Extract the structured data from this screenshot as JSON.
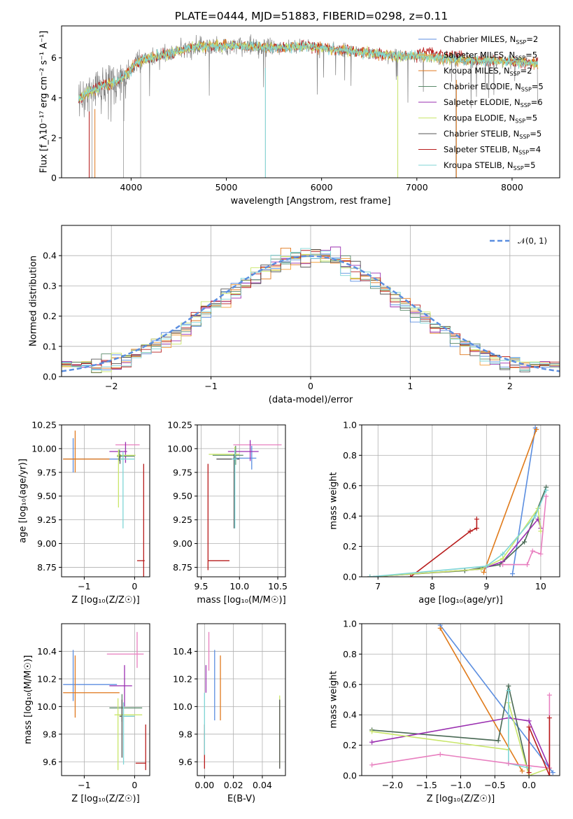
{
  "figure_title": "PLATE=0444, MJD=51883, FIBERID=0298, z=0.11",
  "colors": {
    "Chabrier MILES": "#5b8ee0",
    "Salpeter MILES": "#f2a03c",
    "Kroupa MILES": "#e0791f",
    "Chabrier ELODIE": "#5a8a6a",
    "Salpeter ELODIE": "#9a2fb0",
    "Kroupa ELODIE": "#c9e66a",
    "Chabrier STELIB": "#555555",
    "Salpeter STELIB": "#b81c1c",
    "Kroupa STELIB": "#7fd6d6",
    "Kroupa MILES weight": "#e07a1a",
    "Chabrier STELIB weight": "#4a6a55",
    "Salpeter ELODIE weight": "#9a2fb0",
    "Kroupa ELODIE weight": "#c9e66a",
    "pink": "#e87fbf",
    "data": "#808080"
  },
  "chart_data": [
    {
      "id": "spectrum",
      "type": "line",
      "title": "PLATE=0444, MJD=51883, FIBERID=0298, z=0.11",
      "xlabel": "wavelength [Angstrom, rest frame]",
      "ylabel": "Flux [f_λ10⁻¹⁷ erg cm⁻² s⁻¹ A⁻¹]",
      "xlim": [
        3270,
        8500
      ],
      "ylim": [
        0,
        7.6
      ],
      "xticks": [
        4000,
        5000,
        6000,
        7000,
        8000
      ],
      "yticks": [
        0,
        2,
        4,
        6
      ],
      "grid": false,
      "legend": "right",
      "legend_entries": [
        {
          "label": "Chabrier MILES, N",
          "sub": "SSP",
          "suffix": "=2",
          "color": "#5b8ee0"
        },
        {
          "label": "Salpeter MILES, N",
          "sub": "SSP",
          "suffix": "=5",
          "color": "#f2a03c"
        },
        {
          "label": "Kroupa MILES, N",
          "sub": "SSP",
          "suffix": "=2",
          "color": "#e0791f"
        },
        {
          "label": "Chabrier ELODIE, N",
          "sub": "SSP",
          "suffix": "=5",
          "color": "#5a8a6a"
        },
        {
          "label": "Salpeter ELODIE, N",
          "sub": "SSP",
          "suffix": "=6",
          "color": "#9a2fb0"
        },
        {
          "label": "Kroupa ELODIE, N",
          "sub": "SSP",
          "suffix": "=5",
          "color": "#c9e66a"
        },
        {
          "label": "Chabrier STELIB, N",
          "sub": "SSP",
          "suffix": "=5",
          "color": "#555555"
        },
        {
          "label": "Salpeter STELIB, N",
          "sub": "SSP",
          "suffix": "=4",
          "color": "#b81c1c"
        },
        {
          "label": "Kroupa STELIB, N",
          "sub": "SSP",
          "suffix": "=5",
          "color": "#7fd6d6"
        }
      ],
      "continuum": [
        [
          3450,
          3.9
        ],
        [
          3550,
          4.3
        ],
        [
          3650,
          4.5
        ],
        [
          3750,
          4.7
        ],
        [
          3850,
          4.8
        ],
        [
          3950,
          5.2
        ],
        [
          4050,
          5.7
        ],
        [
          4200,
          6.0
        ],
        [
          4400,
          6.2
        ],
        [
          4600,
          6.5
        ],
        [
          4800,
          6.6
        ],
        [
          5000,
          6.6
        ],
        [
          5200,
          6.6
        ],
        [
          5400,
          6.5
        ],
        [
          5600,
          6.5
        ],
        [
          5800,
          6.6
        ],
        [
          6000,
          6.5
        ],
        [
          6200,
          6.4
        ],
        [
          6400,
          6.3
        ],
        [
          6600,
          6.2
        ],
        [
          6800,
          6.1
        ],
        [
          7000,
          6.1
        ],
        [
          7200,
          6.0
        ],
        [
          7400,
          5.9
        ],
        [
          7600,
          5.9
        ],
        [
          7800,
          5.85
        ],
        [
          8000,
          5.8
        ],
        [
          8270,
          5.75
        ]
      ],
      "data_spikes_low": [
        3560,
        3590,
        3920,
        4100,
        5410,
        6800,
        7410
      ]
    },
    {
      "id": "residuals",
      "type": "line",
      "xlabel": "(data-model)/error",
      "ylabel": "Normed distribution",
      "xlim": [
        -2.5,
        2.5
      ],
      "ylim": [
        0,
        0.5
      ],
      "xticks": [
        -2,
        -1,
        0,
        1,
        2
      ],
      "yticks": [
        0.0,
        0.1,
        0.2,
        0.3,
        0.4
      ],
      "grid": true,
      "legend": "top-right",
      "legend_entries": [
        {
          "label": "𝒩(0, 1)",
          "color": "#5b8ee0",
          "style": "dashed"
        }
      ],
      "series": [
        {
          "name": "𝒩(0, 1)",
          "mu": 0,
          "sigma": 1
        }
      ]
    },
    {
      "id": "age-vs-Z",
      "type": "scatter",
      "xlabel": "Z [log₁₀(Z/Z☉)]",
      "ylabel": "age  [log₁₀(age/yr)]",
      "xlim": [
        -1.45,
        0.3
      ],
      "ylim": [
        8.65,
        10.25
      ],
      "xticks": [
        -1,
        0
      ],
      "yticks": [
        8.75,
        9.0,
        9.25,
        9.5,
        9.75,
        10.0,
        10.25
      ],
      "grid": true,
      "series": [
        {
          "color": "#5b8ee0",
          "x": -1.22,
          "y": 9.89,
          "xerr": [
            0.0,
            0.0
          ],
          "yerr": [
            0.14,
            0.22
          ],
          "hx": [
            -1.42,
            -0.2
          ]
        },
        {
          "color": "#e0791f",
          "x": -1.18,
          "y": 9.89,
          "xerr": [
            0.0,
            0.0
          ],
          "yerr": [
            0.14,
            0.3
          ],
          "hx": [
            -1.42,
            -0.5
          ]
        },
        {
          "color": "#e87fbf",
          "x": 0.08,
          "y": 10.04,
          "yerr": [
            0.0,
            0.0
          ],
          "hx": [
            -0.38,
            0.1
          ]
        },
        {
          "color": "#9a2fb0",
          "x": -0.18,
          "y": 9.97,
          "yerr": [
            0.12,
            0.1
          ],
          "hx": [
            -0.5,
            -0.15
          ]
        },
        {
          "color": "#5a8a6a",
          "x": -0.3,
          "y": 9.92,
          "yerr": [
            0.05,
            0.07
          ],
          "hx": [
            -0.35,
            0.0
          ]
        },
        {
          "color": "#c9e66a",
          "x": -0.32,
          "y": 9.93,
          "yerr": [
            0.55,
            0.06
          ],
          "hx": [
            -0.35,
            0.02
          ]
        },
        {
          "color": "#555555",
          "x": -0.29,
          "y": 9.89,
          "yerr": [
            0.05,
            0.05
          ],
          "hx": [
            -0.32,
            -0.2
          ]
        },
        {
          "color": "#7fd6d6",
          "x": -0.23,
          "y": 9.89,
          "yerr": [
            0.73,
            0.08
          ],
          "hx": [
            -0.3,
            0.0
          ]
        },
        {
          "color": "#b81c1c",
          "x": 0.18,
          "y": 8.82,
          "yerr": [
            0.2,
            1.02
          ],
          "hx": [
            0.05,
            0.2
          ]
        }
      ]
    },
    {
      "id": "age-vs-mass",
      "type": "scatter",
      "xlabel": "mass [log₁₀(M/M☉)]",
      "ylabel": "",
      "xlim": [
        9.45,
        10.6
      ],
      "ylim": [
        8.65,
        10.25
      ],
      "xticks": [
        9.5,
        10.0,
        10.5
      ],
      "yticks": [
        8.75,
        9.0,
        9.25,
        9.5,
        9.75,
        10.0,
        10.25
      ],
      "grid": true,
      "series": [
        {
          "color": "#e87fbf",
          "x": 10.38,
          "y": 10.04,
          "hx": [
            9.92,
            10.55
          ]
        },
        {
          "color": "#5b8ee0",
          "x": 10.16,
          "y": 9.9,
          "yerr": [
            0.12,
            0.13
          ],
          "hx": [
            9.92,
            10.22
          ]
        },
        {
          "color": "#9a2fb0",
          "x": 10.14,
          "y": 9.97,
          "yerr": [
            0.1,
            0.12
          ],
          "hx": [
            9.85,
            10.25
          ]
        },
        {
          "color": "#5a8a6a",
          "x": 9.95,
          "y": 9.93,
          "yerr": [
            0.1,
            0.1
          ],
          "hx": [
            9.65,
            10.05
          ]
        },
        {
          "color": "#c9e66a",
          "x": 9.94,
          "y": 9.94,
          "yerr": [
            0.12,
            0.08
          ],
          "hx": [
            9.6,
            10.0
          ]
        },
        {
          "color": "#555555",
          "x": 9.93,
          "y": 9.89,
          "yerr": [
            0.73,
            0.05
          ],
          "hx": [
            9.7,
            10.0
          ]
        },
        {
          "color": "#7fd6d6",
          "x": 9.94,
          "y": 9.89,
          "yerr": [
            0.73,
            0.1
          ],
          "hx": [
            9.9,
            9.97
          ]
        },
        {
          "color": "#b81c1c",
          "x": 9.59,
          "y": 8.82,
          "yerr": [
            0.1,
            1.02
          ],
          "hx": [
            9.59,
            9.87
          ]
        }
      ]
    },
    {
      "id": "weight-vs-age",
      "type": "line",
      "xlabel": "age  [log₁₀(age/yr)]",
      "ylabel": "mass weight",
      "xlim": [
        6.7,
        10.35
      ],
      "ylim": [
        0,
        1.0
      ],
      "xticks": [
        7,
        8,
        9,
        10
      ],
      "yticks": [
        0.0,
        0.2,
        0.4,
        0.6,
        0.8,
        1.0
      ],
      "grid": true,
      "series": [
        {
          "color": "#5b8ee0",
          "x": [
            9.48,
            9.9
          ],
          "y": [
            0.02,
            0.98
          ]
        },
        {
          "color": "#e07a1a",
          "x": [
            8.95,
            9.92
          ],
          "y": [
            0.03,
            0.97
          ]
        },
        {
          "color": "#b81c1c",
          "x": [
            7.6,
            8.7,
            8.82,
            8.82
          ],
          "y": [
            0.0,
            0.3,
            0.32,
            0.38
          ]
        },
        {
          "color": "#4a6a55",
          "x": [
            6.85,
            8.6,
            9.25,
            9.7,
            10.1
          ],
          "y": [
            0.0,
            0.04,
            0.08,
            0.23,
            0.59
          ]
        },
        {
          "color": "#9a2fb0",
          "x": [
            6.85,
            8.9,
            9.3,
            9.95,
            10.0
          ],
          "y": [
            0.0,
            0.05,
            0.1,
            0.38,
            0.32
          ]
        },
        {
          "color": "#c9e66a",
          "x": [
            6.85,
            8.9,
            9.3,
            9.95,
            10.0
          ],
          "y": [
            0.0,
            0.05,
            0.12,
            0.45,
            0.3
          ]
        },
        {
          "color": "#7fd6d6",
          "x": [
            6.85,
            9.0,
            9.3,
            9.9,
            10.1
          ],
          "y": [
            0.0,
            0.07,
            0.15,
            0.4,
            0.57
          ]
        },
        {
          "color": "#e87fbf",
          "x": [
            9.3,
            9.75,
            9.85,
            10.0,
            10.1
          ],
          "y": [
            0.08,
            0.08,
            0.17,
            0.15,
            0.53
          ]
        }
      ]
    },
    {
      "id": "mass-vs-Z",
      "type": "scatter",
      "xlabel": "Z [log₁₀(Z/Z☉)]",
      "ylabel": "mass [log₁₀(M/M☉)]",
      "xlim": [
        -1.45,
        0.3
      ],
      "ylim": [
        9.5,
        10.6
      ],
      "xticks": [
        -1,
        0
      ],
      "yticks": [
        9.6,
        9.8,
        10.0,
        10.2,
        10.4
      ],
      "grid": true,
      "series": [
        {
          "color": "#5b8ee0",
          "x": -1.22,
          "y": 10.16,
          "yerr": [
            0.12,
            0.25
          ],
          "hx": [
            -1.42,
            -0.35
          ]
        },
        {
          "color": "#e0791f",
          "x": -1.18,
          "y": 10.1,
          "yerr": [
            0.18,
            0.27
          ],
          "hx": [
            -1.42,
            -0.3
          ]
        },
        {
          "color": "#e87fbf",
          "x": 0.05,
          "y": 10.38,
          "yerr": [
            0.1,
            0.16
          ],
          "hx": [
            -0.55,
            0.18
          ]
        },
        {
          "color": "#9a2fb0",
          "x": -0.2,
          "y": 10.15,
          "yerr": [
            0.15,
            0.15
          ],
          "hx": [
            -0.5,
            -0.05
          ]
        },
        {
          "color": "#5a8a6a",
          "x": -0.25,
          "y": 9.99,
          "yerr": [
            0.1,
            0.1
          ],
          "hx": [
            -0.5,
            0.15
          ]
        },
        {
          "color": "#c9e66a",
          "x": -0.33,
          "y": 9.94,
          "yerr": [
            0.4,
            0.12
          ],
          "hx": [
            -0.4,
            0.15
          ]
        },
        {
          "color": "#555555",
          "x": -0.25,
          "y": 9.93,
          "yerr": [
            0.3,
            0.12
          ],
          "hx": [
            -0.3,
            0.0
          ]
        },
        {
          "color": "#7fd6d6",
          "x": -0.22,
          "y": 9.93,
          "yerr": [
            0.35,
            0.1
          ],
          "hx": [
            -0.25,
            0.0
          ]
        },
        {
          "color": "#b81c1c",
          "x": 0.22,
          "y": 9.59,
          "yerr": [
            0.05,
            0.28
          ],
          "hx": [
            0.02,
            0.22
          ]
        }
      ]
    },
    {
      "id": "mass-vs-ebv",
      "type": "scatter",
      "xlabel": "E(B-V)",
      "ylabel": "",
      "xlim": [
        -0.005,
        0.056
      ],
      "ylim": [
        9.5,
        10.6
      ],
      "xticks": [
        0.0,
        0.02,
        0.04
      ],
      "yticks": [
        9.6,
        9.8,
        10.0,
        10.2,
        10.4
      ],
      "grid": true,
      "series": [
        {
          "color": "#b81c1c",
          "x": 0.0,
          "y": 9.6,
          "yerr": [
            0.05,
            0.27
          ]
        },
        {
          "color": "#7fd6d6",
          "x": 0.0,
          "y": 9.9,
          "yerr": [
            0.25,
            0.2
          ]
        },
        {
          "color": "#9a2fb0",
          "x": 0.001,
          "y": 10.15,
          "yerr": [
            0.05,
            0.15
          ]
        },
        {
          "color": "#e87fbf",
          "x": 0.003,
          "y": 10.38,
          "yerr": [
            0.12,
            0.16
          ]
        },
        {
          "color": "#5b8ee0",
          "x": 0.007,
          "y": 10.16,
          "yerr": [
            0.26,
            0.25
          ]
        },
        {
          "color": "#e0791f",
          "x": 0.011,
          "y": 10.1,
          "yerr": [
            0.2,
            0.27
          ]
        },
        {
          "color": "#c9e66a",
          "x": 0.052,
          "y": 9.94,
          "yerr": [
            0.38,
            0.14
          ]
        },
        {
          "color": "#555555",
          "x": 0.052,
          "y": 9.9,
          "yerr": [
            0.35,
            0.15
          ]
        }
      ]
    },
    {
      "id": "weight-vs-Z",
      "type": "line",
      "xlabel": "Z [log₁₀(Z/Z☉)]",
      "ylabel": "mass weight",
      "xlim": [
        -2.45,
        0.45
      ],
      "ylim": [
        0,
        1.0
      ],
      "xticks": [
        -2.0,
        -1.5,
        -1.0,
        -0.5,
        0.0
      ],
      "yticks": [
        0.0,
        0.2,
        0.4,
        0.6,
        0.8,
        1.0
      ],
      "grid": true,
      "series": [
        {
          "color": "#5b8ee0",
          "x": [
            -1.3,
            0.35
          ],
          "y": [
            0.99,
            0.02
          ]
        },
        {
          "color": "#e07a1a",
          "x": [
            -1.3,
            -0.1
          ],
          "y": [
            0.97,
            0.03
          ]
        },
        {
          "color": "#4a6a55",
          "x": [
            -2.3,
            -0.45,
            -0.3,
            0.0
          ],
          "y": [
            0.3,
            0.23,
            0.59,
            0.0
          ]
        },
        {
          "color": "#9a2fb0",
          "x": [
            -2.3,
            -0.3,
            0.0,
            0.3
          ],
          "y": [
            0.22,
            0.38,
            0.36,
            0.05
          ]
        },
        {
          "color": "#c9e66a",
          "x": [
            -2.3,
            -0.3,
            -0.3,
            0.0,
            0.3
          ],
          "y": [
            0.29,
            0.17,
            0.48,
            0.0,
            0.05
          ]
        },
        {
          "color": "#7fd6d6",
          "x": [
            -0.3,
            -0.3,
            0.0
          ],
          "y": [
            0.56,
            0.08,
            0.05
          ]
        },
        {
          "color": "#e87fbf",
          "x": [
            -2.3,
            -1.3,
            -0.3,
            0.3,
            0.3
          ],
          "y": [
            0.07,
            0.14,
            0.08,
            0.05,
            0.53
          ]
        },
        {
          "color": "#b81c1c",
          "x": [
            0.0,
            0.0,
            0.3,
            0.3
          ],
          "y": [
            0.02,
            0.32,
            0.0,
            0.38
          ]
        }
      ]
    }
  ]
}
